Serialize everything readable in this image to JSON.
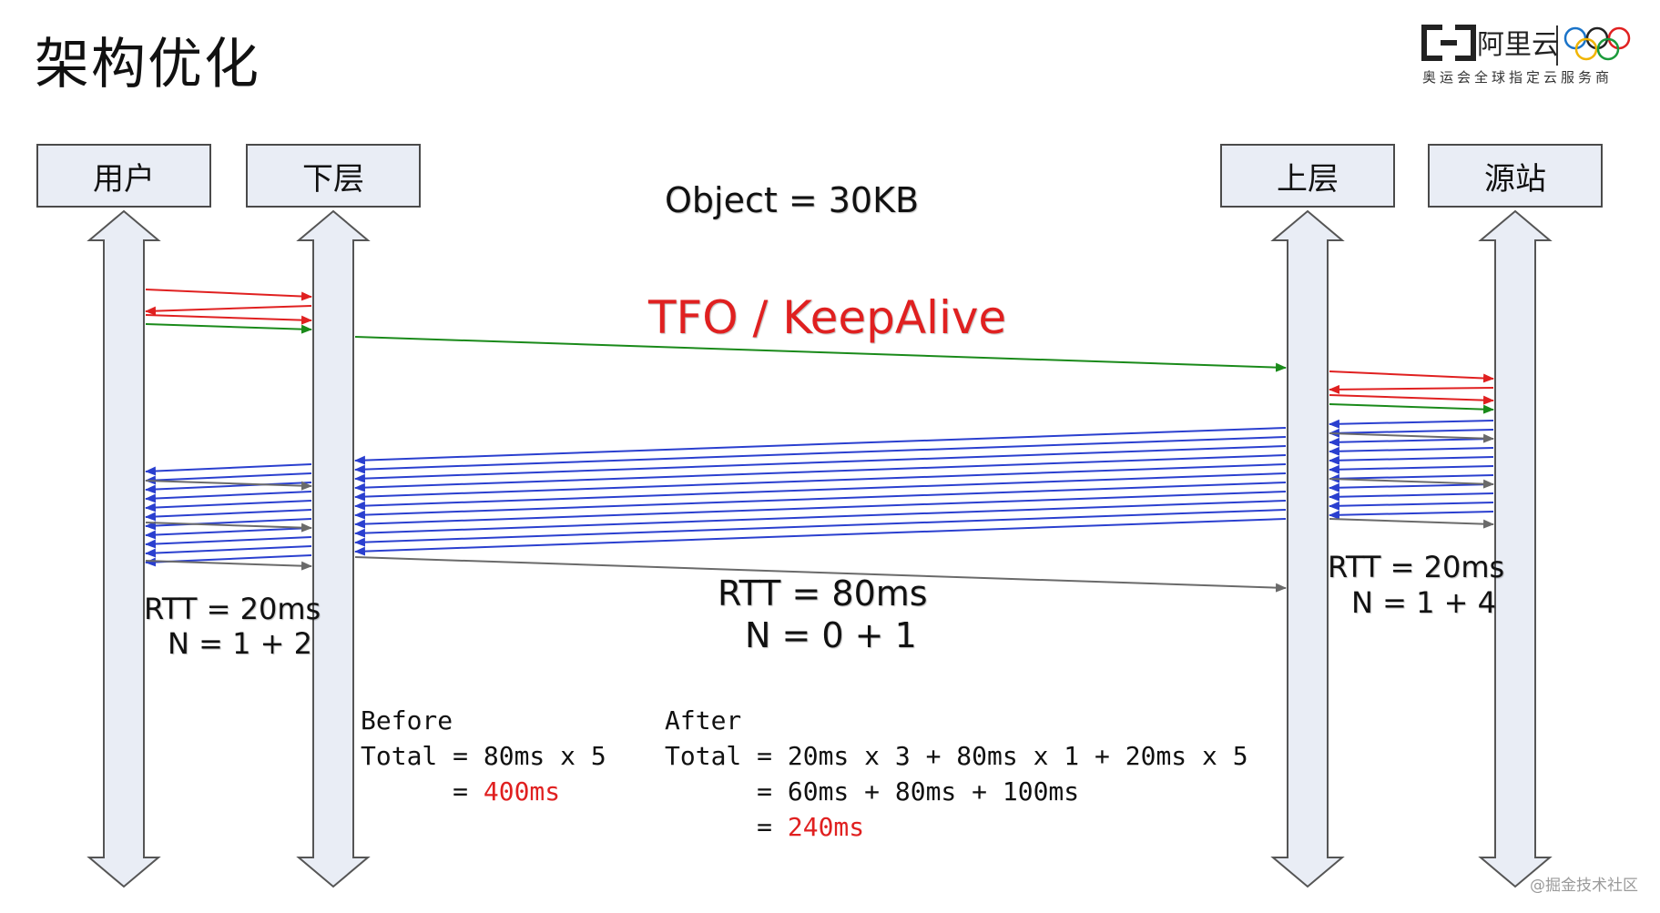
{
  "title": "架构优化",
  "logo": {
    "brand": "阿里云",
    "subtitle": "奥运会全球指定云服务商"
  },
  "nodes": [
    "用户",
    "下层",
    "上层",
    "源站"
  ],
  "object_label": "Object = 30KB",
  "tfo_label": "TFO / KeepAlive",
  "segments": [
    {
      "rtt": "RTT = 20ms",
      "n": "N = 1 + 2"
    },
    {
      "rtt": "RTT = 80ms",
      "n": "N = 0 + 1"
    },
    {
      "rtt": "RTT = 20ms",
      "n": "N = 1 + 4"
    }
  ],
  "before": {
    "heading": "Before",
    "line1": "Total = 80ms x 5",
    "line2_prefix": "      = ",
    "line2_value": "400ms"
  },
  "after": {
    "heading": "After",
    "line1": "Total = 20ms x 3 + 80ms x 1 + 20ms x 5",
    "line2": "      = 60ms + 80ms + 100ms",
    "line3_prefix": "      = ",
    "line3_value": "240ms"
  },
  "colors": {
    "syn": "#e02020",
    "data": "#2a3fcf",
    "ack_green": "#1a8a1a",
    "ack_gray": "#6a6a6a"
  },
  "watermark": "@掘金技术社区"
}
